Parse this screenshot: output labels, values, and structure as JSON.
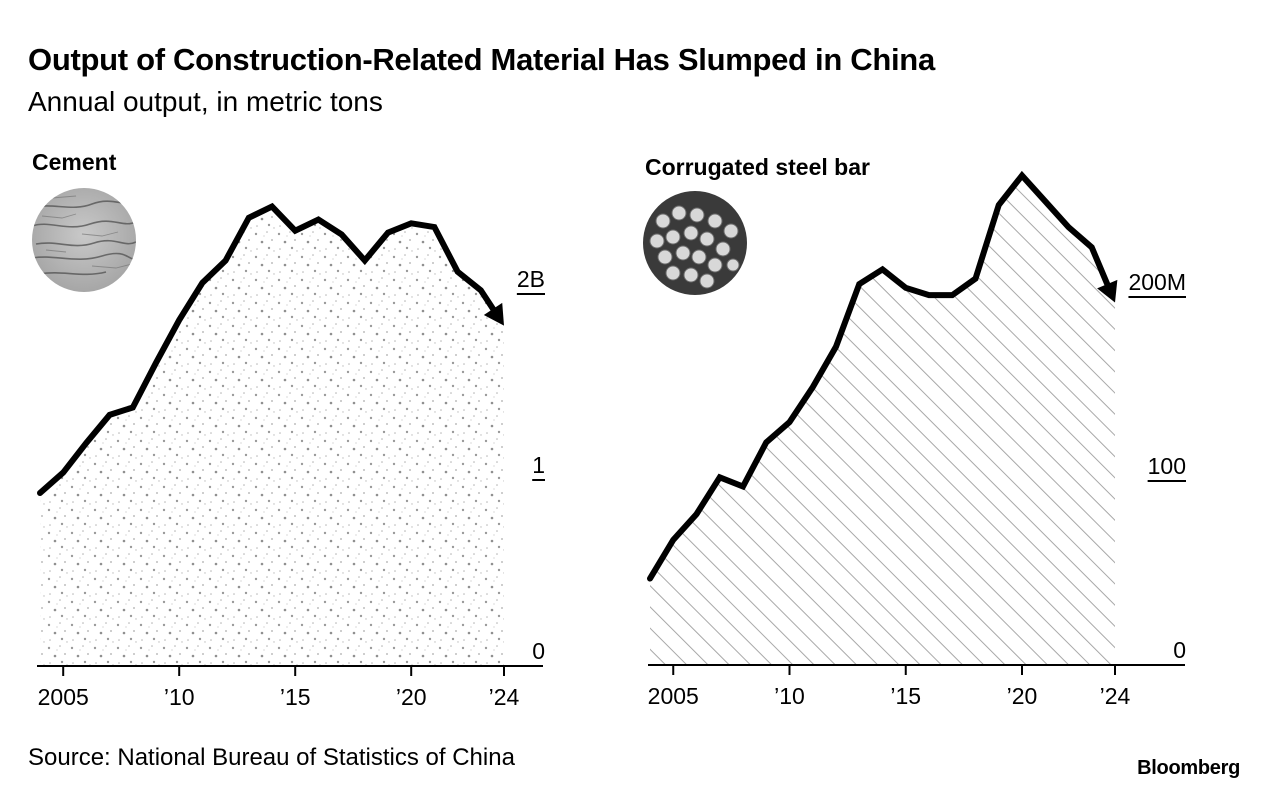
{
  "header": {
    "title": "Output of Construction-Related Material Has Slumped in China",
    "subtitle": "Annual output, in metric tons"
  },
  "footer": {
    "source": "Source: National Bureau of Statistics of China",
    "brand": "Bloomberg"
  },
  "panels": [
    {
      "title": "Cement",
      "photo_icon": "cement-texture-photo"
    },
    {
      "title": "Corrugated steel bar",
      "photo_icon": "steel-rebar-bundle-photo"
    }
  ],
  "colors": {
    "line": "#000000",
    "fill_pattern": "#9a9a9a",
    "axis": "#000000"
  },
  "chart_data": [
    {
      "type": "area",
      "title": "Cement",
      "xlabel": "",
      "ylabel": "Annual output, metric tons",
      "unit": "billion metric tons",
      "x": [
        2004,
        2005,
        2006,
        2007,
        2008,
        2009,
        2010,
        2011,
        2012,
        2013,
        2014,
        2015,
        2016,
        2017,
        2018,
        2019,
        2020,
        2021,
        2022,
        2023,
        2024
      ],
      "values": [
        0.93,
        1.04,
        1.2,
        1.35,
        1.39,
        1.63,
        1.86,
        2.06,
        2.18,
        2.41,
        2.47,
        2.34,
        2.4,
        2.32,
        2.18,
        2.33,
        2.38,
        2.36,
        2.12,
        2.02,
        1.83
      ],
      "xlim": [
        2004,
        2024
      ],
      "ylim": [
        0,
        2.5
      ],
      "x_ticks": [
        2005,
        2010,
        2015,
        2020,
        2024
      ],
      "x_tick_labels": [
        "2005",
        "’10",
        "’15",
        "’20",
        "’24"
      ],
      "y_ticks": [
        0,
        1,
        2
      ],
      "y_tick_labels": [
        "0",
        "1",
        "2B"
      ],
      "fill": "stipple",
      "end_marker": "arrow",
      "grid": false,
      "legend": "none"
    },
    {
      "type": "area",
      "title": "Corrugated steel bar",
      "xlabel": "",
      "ylabel": "Annual output, metric tons",
      "unit": "million metric tons",
      "x": [
        2004,
        2005,
        2006,
        2007,
        2008,
        2009,
        2010,
        2011,
        2012,
        2013,
        2014,
        2015,
        2016,
        2017,
        2018,
        2019,
        2020,
        2021,
        2022,
        2023,
        2024
      ],
      "values": [
        47,
        68,
        82,
        102,
        97,
        121,
        132,
        151,
        173,
        207,
        215,
        205,
        201,
        201,
        210,
        250,
        266,
        252,
        238,
        227,
        197
      ],
      "xlim": [
        2004,
        2024
      ],
      "ylim": [
        0,
        270
      ],
      "x_ticks": [
        2005,
        2010,
        2015,
        2020,
        2024
      ],
      "x_tick_labels": [
        "2005",
        "’10",
        "’15",
        "’20",
        "’24"
      ],
      "y_ticks": [
        0,
        100,
        200
      ],
      "y_tick_labels": [
        "0",
        "100",
        "200M"
      ],
      "fill": "diagonal-hatch",
      "end_marker": "arrow",
      "grid": false,
      "legend": "none"
    }
  ]
}
